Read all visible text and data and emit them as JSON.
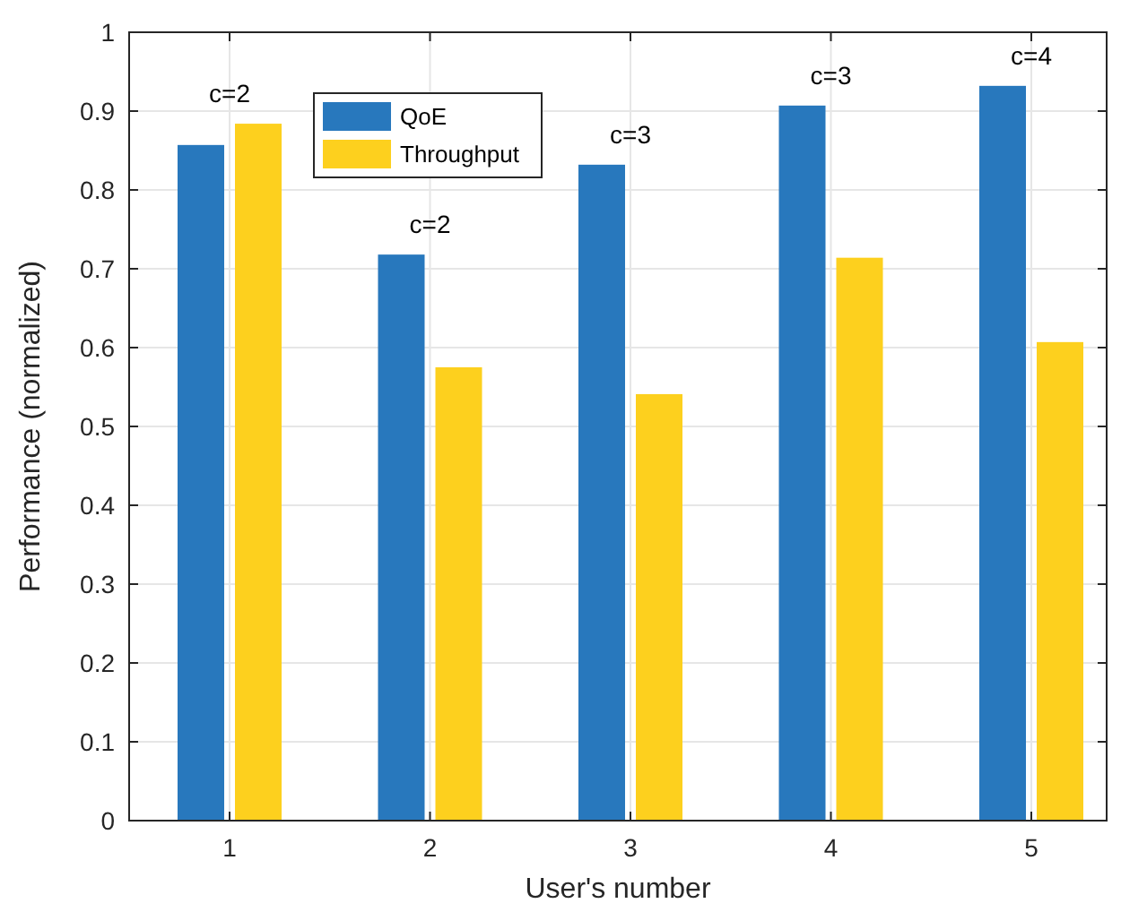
{
  "chart_data": {
    "type": "bar",
    "xlabel": "User's number",
    "ylabel": "Performance (normalized)",
    "categories": [
      "1",
      "2",
      "3",
      "4",
      "5"
    ],
    "series": [
      {
        "name": "QoE",
        "color": "#2878bd",
        "values": [
          0.857,
          0.718,
          0.832,
          0.907,
          0.932
        ]
      },
      {
        "name": "Throughput",
        "color": "#fdd01e",
        "values": [
          0.884,
          0.575,
          0.541,
          0.714,
          0.607
        ]
      }
    ],
    "ylim": [
      0,
      1
    ],
    "yticks": [
      0,
      0.1,
      0.2,
      0.3,
      0.4,
      0.5,
      0.6,
      0.7,
      0.8,
      0.9,
      1
    ],
    "grid": true,
    "legend": "top left",
    "annotations": [
      "c=2",
      "c=2",
      "c=3",
      "c=3",
      "c=4"
    ]
  }
}
